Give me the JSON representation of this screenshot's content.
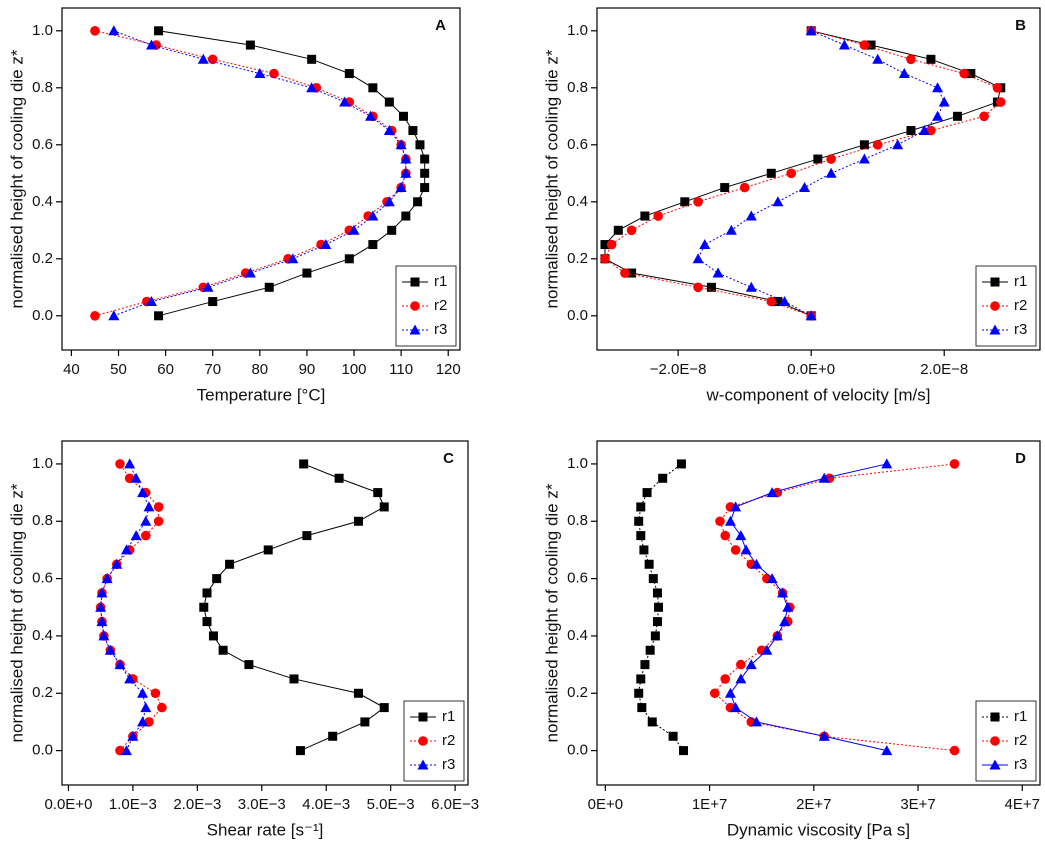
{
  "chart_data": [
    {
      "type": "line",
      "label": "A",
      "xlabel": "Temperature [°C]",
      "ylabel": "normalised height of cooling die z*",
      "xlim": [
        38,
        122.5
      ],
      "xticks": [
        40,
        50,
        60,
        70,
        80,
        90,
        100,
        110,
        120
      ],
      "ylim": [
        -0.12,
        1.08
      ],
      "yticks": [
        {
          "value": 0,
          "label": "0.0"
        },
        0.2,
        0.4,
        0.6,
        0.8,
        {
          "value": 1,
          "label": "1.0"
        }
      ],
      "legend": "lower right",
      "series": [
        {
          "name": "r1",
          "color": "#000000",
          "marker": "square",
          "dash": "solid",
          "x": [
            58.5,
            70,
            82,
            90,
            99,
            104,
            108,
            111,
            113.5,
            115,
            115,
            115,
            114,
            112.5,
            110.5,
            107.5,
            104,
            99,
            91,
            78,
            58.5
          ],
          "values": [
            0,
            0.05,
            0.1,
            0.15,
            0.2,
            0.25,
            0.3,
            0.35,
            0.4,
            0.45,
            0.5,
            0.55,
            0.6,
            0.65,
            0.7,
            0.75,
            0.8,
            0.85,
            0.9,
            0.95,
            1
          ]
        },
        {
          "name": "r2",
          "color": "#ff0000",
          "marker": "circle",
          "dash": "dotted",
          "x": [
            45,
            56,
            68,
            77,
            86,
            93,
            99,
            103,
            107,
            110,
            111,
            111,
            110,
            108,
            104,
            99,
            92,
            83,
            70,
            58,
            45
          ],
          "values": [
            0,
            0.05,
            0.1,
            0.15,
            0.2,
            0.25,
            0.3,
            0.35,
            0.4,
            0.45,
            0.5,
            0.55,
            0.6,
            0.65,
            0.7,
            0.75,
            0.8,
            0.85,
            0.9,
            0.95,
            1
          ]
        },
        {
          "name": "r3",
          "color": "#0000ff",
          "marker": "triangle",
          "dash": "dotted",
          "x": [
            49,
            57,
            69,
            78,
            87,
            94,
            100,
            104,
            107.5,
            110,
            111,
            111,
            110,
            107.5,
            103.5,
            98,
            91,
            80,
            68,
            57,
            49
          ],
          "values": [
            0,
            0.05,
            0.1,
            0.15,
            0.2,
            0.25,
            0.3,
            0.35,
            0.4,
            0.45,
            0.5,
            0.55,
            0.6,
            0.65,
            0.7,
            0.75,
            0.8,
            0.85,
            0.9,
            0.95,
            1
          ]
        }
      ]
    },
    {
      "type": "line",
      "label": "B",
      "xlabel": "w-component of velocity [m/s]",
      "ylabel": "normalised height of cooling die z*",
      "xlim": [
        -3.22e-08,
        3.44e-08
      ],
      "xticks": [
        {
          "value": -2e-08,
          "label": "−2.0E−8"
        },
        {
          "value": 0,
          "label": "0.0E+0"
        },
        {
          "value": 2e-08,
          "label": "2.0E−8"
        }
      ],
      "ylim": [
        -0.12,
        1.08
      ],
      "yticks": [
        {
          "value": 0,
          "label": "0.0"
        },
        0.2,
        0.4,
        0.6,
        0.8,
        {
          "value": 1,
          "label": "1.0"
        }
      ],
      "legend": "lower right",
      "series": [
        {
          "name": "r1",
          "color": "#000000",
          "marker": "square",
          "dash": "solid",
          "x": [
            0,
            -5e-09,
            -1.5e-08,
            -2.7e-08,
            -3.1e-08,
            -3.1e-08,
            -2.9e-08,
            -2.5e-08,
            -1.9e-08,
            -1.3e-08,
            -6e-09,
            1e-09,
            8e-09,
            1.5e-08,
            2.2e-08,
            2.8e-08,
            2.85e-08,
            2.4e-08,
            1.8e-08,
            9e-09,
            0
          ],
          "values": [
            0,
            0.05,
            0.1,
            0.15,
            0.2,
            0.25,
            0.3,
            0.35,
            0.4,
            0.45,
            0.5,
            0.55,
            0.6,
            0.65,
            0.7,
            0.75,
            0.8,
            0.85,
            0.9,
            0.95,
            1
          ]
        },
        {
          "name": "r2",
          "color": "#ff0000",
          "marker": "circle",
          "dash": "dotted",
          "x": [
            0,
            -6e-09,
            -1.7e-08,
            -2.8e-08,
            -3.1e-08,
            -3e-08,
            -2.7e-08,
            -2.3e-08,
            -1.7e-08,
            -1e-08,
            -3e-09,
            3e-09,
            1e-08,
            1.8e-08,
            2.6e-08,
            2.85e-08,
            2.8e-08,
            2.3e-08,
            1.5e-08,
            8e-09,
            0
          ],
          "values": [
            0,
            0.05,
            0.1,
            0.15,
            0.2,
            0.25,
            0.3,
            0.35,
            0.4,
            0.45,
            0.5,
            0.55,
            0.6,
            0.65,
            0.7,
            0.75,
            0.8,
            0.85,
            0.9,
            0.95,
            1
          ]
        },
        {
          "name": "r3",
          "color": "#0000ff",
          "marker": "triangle",
          "dash": "dotted",
          "x": [
            0,
            -4e-09,
            -9e-09,
            -1.4e-08,
            -1.7e-08,
            -1.6e-08,
            -1.2e-08,
            -9e-09,
            -5e-09,
            -1e-09,
            3e-09,
            8e-09,
            1.3e-08,
            1.7e-08,
            1.9e-08,
            2e-08,
            1.9e-08,
            1.4e-08,
            1e-08,
            5e-09,
            0
          ],
          "values": [
            0,
            0.05,
            0.1,
            0.15,
            0.2,
            0.25,
            0.3,
            0.35,
            0.4,
            0.45,
            0.5,
            0.55,
            0.6,
            0.65,
            0.7,
            0.75,
            0.8,
            0.85,
            0.9,
            0.95,
            1
          ]
        }
      ]
    },
    {
      "type": "line",
      "label": "C",
      "xlabel": "Shear rate [s⁻¹]",
      "ylabel": "normalised height of cooling die z*",
      "xlim": [
        -0.0001,
        0.0062
      ],
      "xticks": [
        {
          "value": 0,
          "label": "0.0E+0"
        },
        {
          "value": 0.001,
          "label": "1.0E−3"
        },
        {
          "value": 0.002,
          "label": "2.0E−3"
        },
        {
          "value": 0.003,
          "label": "3.0E−3"
        },
        {
          "value": 0.004,
          "label": "4.0E−3"
        },
        {
          "value": 0.005,
          "label": "5.0E−3"
        },
        {
          "value": 0.006,
          "label": "6.0E−3"
        }
      ],
      "ylim": [
        -0.12,
        1.08
      ],
      "yticks": [
        {
          "value": 0,
          "label": "0.0"
        },
        0.2,
        0.4,
        0.6,
        0.8,
        {
          "value": 1,
          "label": "1.0"
        }
      ],
      "legend": "lower right",
      "series": [
        {
          "name": "r1",
          "color": "#000000",
          "marker": "square",
          "dash": "solid",
          "x": [
            0.0036,
            0.0041,
            0.0046,
            0.0049,
            0.0045,
            0.0035,
            0.0028,
            0.0024,
            0.00225,
            0.00215,
            0.0021,
            0.00215,
            0.0023,
            0.0025,
            0.0031,
            0.0037,
            0.0045,
            0.0049,
            0.0048,
            0.0042,
            0.00365
          ],
          "values": [
            0,
            0.05,
            0.1,
            0.15,
            0.2,
            0.25,
            0.3,
            0.35,
            0.4,
            0.45,
            0.5,
            0.55,
            0.6,
            0.65,
            0.7,
            0.75,
            0.8,
            0.85,
            0.9,
            0.95,
            1
          ]
        },
        {
          "name": "r2",
          "color": "#ff0000",
          "marker": "circle",
          "dash": "dotted",
          "x": [
            0.0008,
            0.001,
            0.00125,
            0.00145,
            0.00135,
            0.001,
            0.0008,
            0.00065,
            0.00055,
            0.00052,
            0.0005,
            0.00052,
            0.0006,
            0.00075,
            0.00095,
            0.0012,
            0.0014,
            0.0014,
            0.0012,
            0.00095,
            0.0008
          ],
          "values": [
            0,
            0.05,
            0.1,
            0.15,
            0.2,
            0.25,
            0.3,
            0.35,
            0.4,
            0.45,
            0.5,
            0.55,
            0.6,
            0.65,
            0.7,
            0.75,
            0.8,
            0.85,
            0.9,
            0.95,
            1
          ]
        },
        {
          "name": "r3",
          "color": "#0000ff",
          "marker": "triangle",
          "dash": "dotted",
          "x": [
            0.0009,
            0.001,
            0.00115,
            0.0012,
            0.00115,
            0.00095,
            0.0008,
            0.00065,
            0.00055,
            0.00052,
            0.0005,
            0.00052,
            0.0006,
            0.00075,
            0.0009,
            0.00105,
            0.0012,
            0.00125,
            0.00115,
            0.00105,
            0.00095
          ],
          "values": [
            0,
            0.05,
            0.1,
            0.15,
            0.2,
            0.25,
            0.3,
            0.35,
            0.4,
            0.45,
            0.5,
            0.55,
            0.6,
            0.65,
            0.7,
            0.75,
            0.8,
            0.85,
            0.9,
            0.95,
            1
          ]
        }
      ]
    },
    {
      "type": "line",
      "label": "D",
      "xlabel": "Dynamic viscosity [Pa s]",
      "ylabel": "normalised height of cooling die z*",
      "xlim": [
        -800000,
        41700000
      ],
      "xticks": [
        {
          "value": 0,
          "label": "0E+0"
        },
        {
          "value": 10000000,
          "label": "1E+7"
        },
        {
          "value": 20000000,
          "label": "2E+7"
        },
        {
          "value": 30000000,
          "label": "3E+7"
        },
        {
          "value": 40000000,
          "label": "4E+7"
        }
      ],
      "ylim": [
        -0.12,
        1.08
      ],
      "yticks": [
        {
          "value": 0,
          "label": "0.0"
        },
        0.2,
        0.4,
        0.6,
        0.8,
        {
          "value": 1,
          "label": "1.0"
        }
      ],
      "legend": "lower right",
      "series": [
        {
          "name": "r1",
          "color": "#000000",
          "marker": "square",
          "dash": "dotted",
          "x": [
            7500000.0,
            6500000.0,
            4500000.0,
            3500000.0,
            3200000.0,
            3400000.0,
            3800000.0,
            4300000.0,
            4800000.0,
            5000000.0,
            5100000.0,
            5000000.0,
            4600000.0,
            4200000.0,
            3700000.0,
            3400000.0,
            3200000.0,
            3400000.0,
            4000000.0,
            5500000.0,
            7300000.0
          ],
          "values": [
            0,
            0.05,
            0.1,
            0.15,
            0.2,
            0.25,
            0.3,
            0.35,
            0.4,
            0.45,
            0.5,
            0.55,
            0.6,
            0.65,
            0.7,
            0.75,
            0.8,
            0.85,
            0.9,
            0.95,
            1
          ]
        },
        {
          "name": "r2",
          "color": "#ff0000",
          "marker": "circle",
          "dash": "dotted",
          "x": [
            33500000.0,
            21000000.0,
            14000000.0,
            12000000.0,
            10500000.0,
            11500000.0,
            13000000.0,
            15000000.0,
            16500000.0,
            17500000.0,
            17700000.0,
            17000000.0,
            15500000.0,
            14000000.0,
            12500000.0,
            11500000.0,
            11000000.0,
            12000000.0,
            16500000.0,
            21500000.0,
            33500000.0
          ],
          "values": [
            0,
            0.05,
            0.1,
            0.15,
            0.2,
            0.25,
            0.3,
            0.35,
            0.4,
            0.45,
            0.5,
            0.55,
            0.6,
            0.65,
            0.7,
            0.75,
            0.8,
            0.85,
            0.9,
            0.95,
            1
          ]
        },
        {
          "name": "r3",
          "color": "#0000ff",
          "marker": "triangle",
          "dash": "solid",
          "x": [
            27000000.0,
            21000000.0,
            14500000.0,
            12500000.0,
            12000000.0,
            13000000.0,
            14000000.0,
            15500000.0,
            16500000.0,
            17200000.0,
            17500000.0,
            17000000.0,
            16000000.0,
            14500000.0,
            13500000.0,
            13000000.0,
            12000000.0,
            12500000.0,
            16000000.0,
            21000000.0,
            27000000.0
          ],
          "values": [
            0,
            0.05,
            0.1,
            0.15,
            0.2,
            0.25,
            0.3,
            0.35,
            0.4,
            0.45,
            0.5,
            0.55,
            0.6,
            0.65,
            0.7,
            0.75,
            0.8,
            0.85,
            0.9,
            0.95,
            1
          ]
        }
      ]
    }
  ]
}
